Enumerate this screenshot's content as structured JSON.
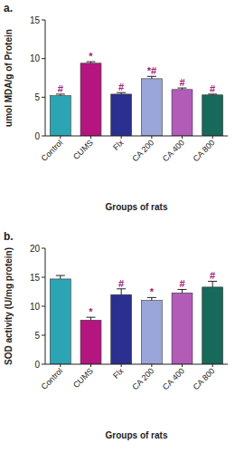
{
  "chart_data": [
    {
      "type": "bar",
      "title": "a.",
      "x_label": "Groups of rats",
      "y_label": "umol MDA/g of Protein",
      "categories": [
        "Control",
        "CUMS",
        "Flx",
        "CA 200",
        "CA 400",
        "CA 800"
      ],
      "values": [
        5.2,
        9.4,
        5.4,
        7.4,
        6.0,
        5.3
      ],
      "errors": [
        0.2,
        0.2,
        0.2,
        0.3,
        0.2,
        0.1
      ],
      "annotations": [
        "#",
        "*",
        "#",
        "*#",
        "#",
        "#"
      ],
      "colors": [
        "#2ba5b3",
        "#b5157f",
        "#2b2f8f",
        "#9aa6d9",
        "#b25cb8",
        "#17695a"
      ],
      "ylim": [
        0,
        15
      ],
      "yticks": [
        0,
        5,
        10,
        15
      ]
    },
    {
      "type": "bar",
      "title": "b.",
      "x_label": "Groups of rats",
      "y_label": "SOD activity (U/mg protein)",
      "categories": [
        "Control",
        "CUMS",
        "Flx",
        "CA 200",
        "CA 400",
        "CA 800"
      ],
      "values": [
        14.7,
        7.6,
        12.0,
        11.0,
        12.3,
        13.3
      ],
      "errors": [
        0.6,
        0.5,
        1.0,
        0.5,
        0.6,
        1.0
      ],
      "annotations": [
        null,
        "*",
        "#",
        "*",
        "#",
        "#"
      ],
      "colors": [
        "#2ba5b3",
        "#b5157f",
        "#2b2f8f",
        "#9aa6d9",
        "#b25cb8",
        "#17695a"
      ],
      "ylim": [
        0,
        20
      ],
      "yticks": [
        0,
        5,
        10,
        15,
        20
      ]
    }
  ]
}
